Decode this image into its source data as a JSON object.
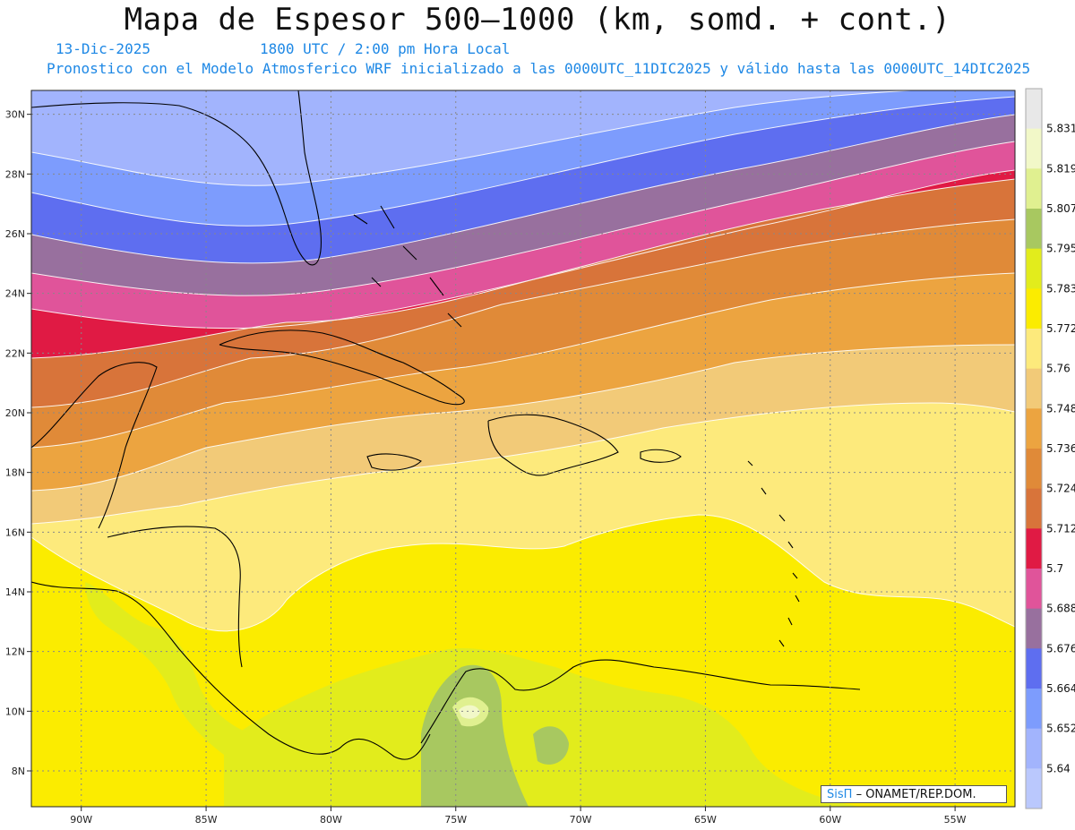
{
  "header": {
    "title": "Mapa de Espesor 500—1000 (km, somd. + cont.)",
    "date": "13-Dic-2025",
    "time": "1800 UTC / 2:00 pm Hora Local",
    "description": "Pronostico con el Modelo Atmosferico WRF inicializado a las 0000UTC_11DIC2025 y válido hasta las  0000UTC_14DIC2025"
  },
  "map": {
    "lon_labels": [
      "90W",
      "85W",
      "80W",
      "75W",
      "70W",
      "65W",
      "60W",
      "55W"
    ],
    "lat_labels": [
      "30N",
      "28N",
      "26N",
      "24N",
      "22N",
      "20N",
      "18N",
      "16N",
      "14N",
      "12N",
      "10N",
      "8N"
    ],
    "lon_range": [
      -92,
      -52.6
    ],
    "lat_range": [
      6.8,
      30.8
    ]
  },
  "colorbar": {
    "labels": [
      "5.831",
      "5.819",
      "5.807",
      "5.795",
      "5.783",
      "5.772",
      "5.76",
      "5.748",
      "5.736",
      "5.724",
      "5.712",
      "5.7",
      "5.688",
      "5.676",
      "5.664",
      "5.652",
      "5.64"
    ],
    "colors": [
      "#e8e8e8",
      "#f2f8c8",
      "#e0f090",
      "#a8c860",
      "#e2ec1c",
      "#fbec00",
      "#fdea7c",
      "#f2ca78",
      "#eca440",
      "#e08a38",
      "#d8743a",
      "#e01a44",
      "#e0549a",
      "#98709e",
      "#5e6ef0",
      "#7d9cfd",
      "#a2b4fd",
      "#bac8fd"
    ]
  },
  "credit": {
    "brand": "SisΠ",
    "org": "– ONAMET/REP.DOM."
  }
}
